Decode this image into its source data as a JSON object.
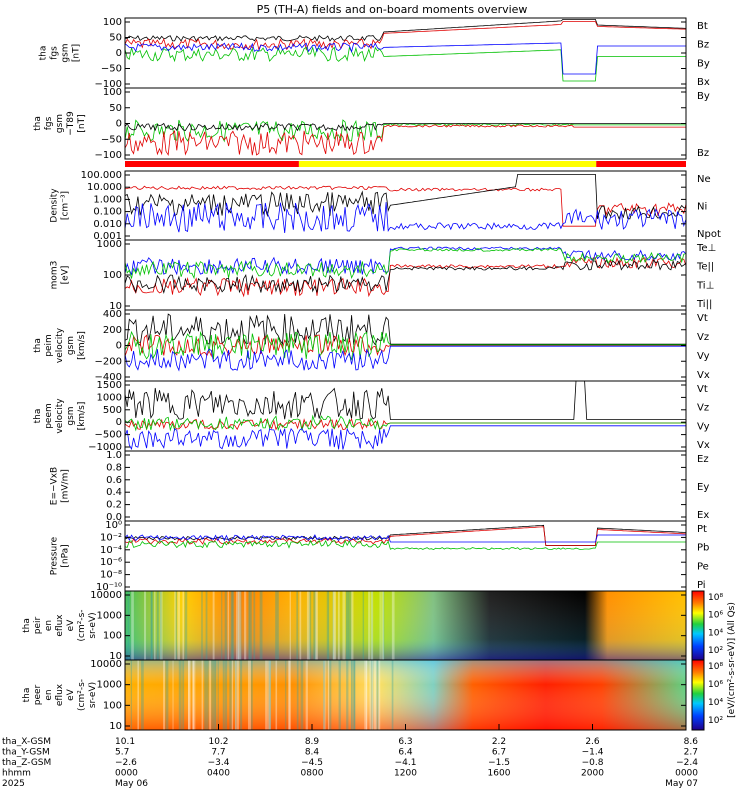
{
  "title": "P5 (TH-A) fields and on-board moments overview",
  "chart_data": [
    {
      "type": "line",
      "id": "fgs_gsm",
      "ylabel": [
        "tha",
        "fgs",
        "gsm",
        "[nT]"
      ],
      "yticks": [
        "100",
        "50",
        "0",
        "−50",
        "−100"
      ],
      "legend": [
        {
          "label": "Bt",
          "color": "#000000"
        },
        {
          "label": "Bz",
          "color": "#e00000"
        },
        {
          "label": "By",
          "color": "#00c000"
        },
        {
          "label": "Bx",
          "color": "#0000ff"
        }
      ]
    },
    {
      "type": "line",
      "id": "fgs_gsm_dev",
      "ylabel": [
        "tha",
        "fgs",
        "gsm",
        "−T89",
        "[nT]"
      ],
      "yticks": [
        "100",
        "50",
        "0",
        "−50",
        "−100"
      ],
      "legend": [
        {
          "label": "By",
          "color": "#00c000"
        },
        {
          "label": "Bz",
          "color": "#e00000"
        }
      ]
    },
    {
      "type": "line",
      "id": "density",
      "ylabel": [
        "Density",
        "[cm⁻³]"
      ],
      "yticks": [
        "100.000",
        "10.000",
        "1.000",
        "0.100",
        "0.010",
        "0.001"
      ],
      "scale": "log",
      "legend": [
        {
          "label": "Ne",
          "color": "#e00000"
        },
        {
          "label": "Ni",
          "color": "#000000"
        },
        {
          "label": "Npot",
          "color": "#0000ff"
        }
      ]
    },
    {
      "type": "line",
      "id": "temp",
      "ylabel": [
        "mom3",
        "[eV]"
      ],
      "yticks": [
        "1000",
        "100",
        "10"
      ],
      "scale": "log",
      "legend": [
        {
          "label": "Te⊥",
          "color": "#e00000"
        },
        {
          "label": "Te||",
          "color": "#000000"
        },
        {
          "label": "Ti⊥",
          "color": "#0000ff"
        },
        {
          "label": "Ti||",
          "color": "#00c000"
        }
      ]
    },
    {
      "type": "line",
      "id": "peim_vel",
      "ylabel": [
        "tha",
        "peim",
        "velocity",
        "gsm",
        "[km/s]"
      ],
      "yticks": [
        "400",
        "200",
        "0",
        "−200",
        "−400"
      ],
      "legend": [
        {
          "label": "Vt",
          "color": "#000000"
        },
        {
          "label": "Vz",
          "color": "#e00000"
        },
        {
          "label": "Vy",
          "color": "#00c000"
        },
        {
          "label": "Vx",
          "color": "#0000ff"
        }
      ]
    },
    {
      "type": "line",
      "id": "peem_vel",
      "ylabel": [
        "tha",
        "peem",
        "velocity",
        "gsm",
        "[km/s]"
      ],
      "yticks": [
        "1500",
        "1000",
        "500",
        "0",
        "−500",
        "−1000"
      ],
      "legend": [
        {
          "label": "Vt",
          "color": "#000000"
        },
        {
          "label": "Vz",
          "color": "#e00000"
        },
        {
          "label": "Vy",
          "color": "#00c000"
        },
        {
          "label": "Vx",
          "color": "#0000ff"
        }
      ]
    },
    {
      "type": "line",
      "id": "efield",
      "ylabel": [
        "E=−VxB",
        "[mV/m]"
      ],
      "yticks": [
        "1.0",
        "0.8",
        "0.6",
        "0.4",
        "0.2",
        "0.0"
      ],
      "legend": [
        {
          "label": "Ez",
          "color": "#e00000"
        },
        {
          "label": "Ey",
          "color": "#00c000"
        },
        {
          "label": "Ex",
          "color": "#0000ff"
        }
      ]
    },
    {
      "type": "line",
      "id": "pressure",
      "ylabel": [
        "Pressure",
        "[nPa]"
      ],
      "yticks": [
        "10⁰",
        "10⁻²",
        "10⁻⁴",
        "10⁻⁶",
        "10⁻⁸",
        "10⁻¹⁰"
      ],
      "scale": "log",
      "legend": [
        {
          "label": "Pt",
          "color": "#000000"
        },
        {
          "label": "Pb",
          "color": "#e00000"
        },
        {
          "label": "Pe",
          "color": "#00c000"
        },
        {
          "label": "Pi",
          "color": "#0000ff"
        }
      ]
    },
    {
      "type": "heatmap",
      "id": "peir_spec",
      "ylabel": [
        "tha",
        "peir",
        "en",
        "eflux",
        "eV",
        "(cm²-s-",
        "sr-eV)"
      ],
      "yticks": [
        "10000",
        "1000",
        "100",
        "10"
      ],
      "scale": "log"
    },
    {
      "type": "heatmap",
      "id": "peer_spec",
      "ylabel": [
        "tha",
        "peer",
        "en",
        "eflux",
        "eV",
        "(cm²-s-",
        "sr-eV)"
      ],
      "yticks": [
        "10000",
        "1000",
        "100",
        "10"
      ],
      "scale": "log"
    }
  ],
  "colorbar": {
    "label": "[eV/(cm²-s-sr-eV)] (All Qs)",
    "ticks1": [
      "10⁸",
      "10⁶",
      "10⁴",
      "10²"
    ],
    "ticks2": [
      "10⁸",
      "10⁶",
      "10⁴",
      "10²"
    ]
  },
  "region_bar": {
    "segments": [
      {
        "from": 0,
        "to": 0.31,
        "color": "#ff0000"
      },
      {
        "from": 0.31,
        "to": 0.84,
        "color": "#ffff00"
      },
      {
        "from": 0.84,
        "to": 1,
        "color": "#ff0000"
      }
    ]
  },
  "xaxis": {
    "row_labels": [
      "tha_X-GSM",
      "tha_Y-GSM",
      "tha_Z-GSM",
      "hhmm",
      "2025"
    ],
    "columns": [
      {
        "x": "10.1",
        "y": "5.7",
        "z": "−2.6",
        "hhmm": "0000",
        "date": "May 06"
      },
      {
        "x": "10.2",
        "y": "7.7",
        "z": "−3.4",
        "hhmm": "0400",
        "date": ""
      },
      {
        "x": "8.9",
        "y": "8.4",
        "z": "−4.5",
        "hhmm": "0800",
        "date": ""
      },
      {
        "x": "6.3",
        "y": "6.4",
        "z": "−4.1",
        "hhmm": "1200",
        "date": ""
      },
      {
        "x": "2.2",
        "y": "6.7",
        "z": "−1.5",
        "hhmm": "1600",
        "date": ""
      },
      {
        "x": "2.6",
        "y": "−1.4",
        "z": "−0.8",
        "hhmm": "2000",
        "date": ""
      },
      {
        "x": "8.6",
        "y": "2.7",
        "z": "−2.4",
        "hhmm": "0000",
        "date": "May 07"
      }
    ]
  }
}
